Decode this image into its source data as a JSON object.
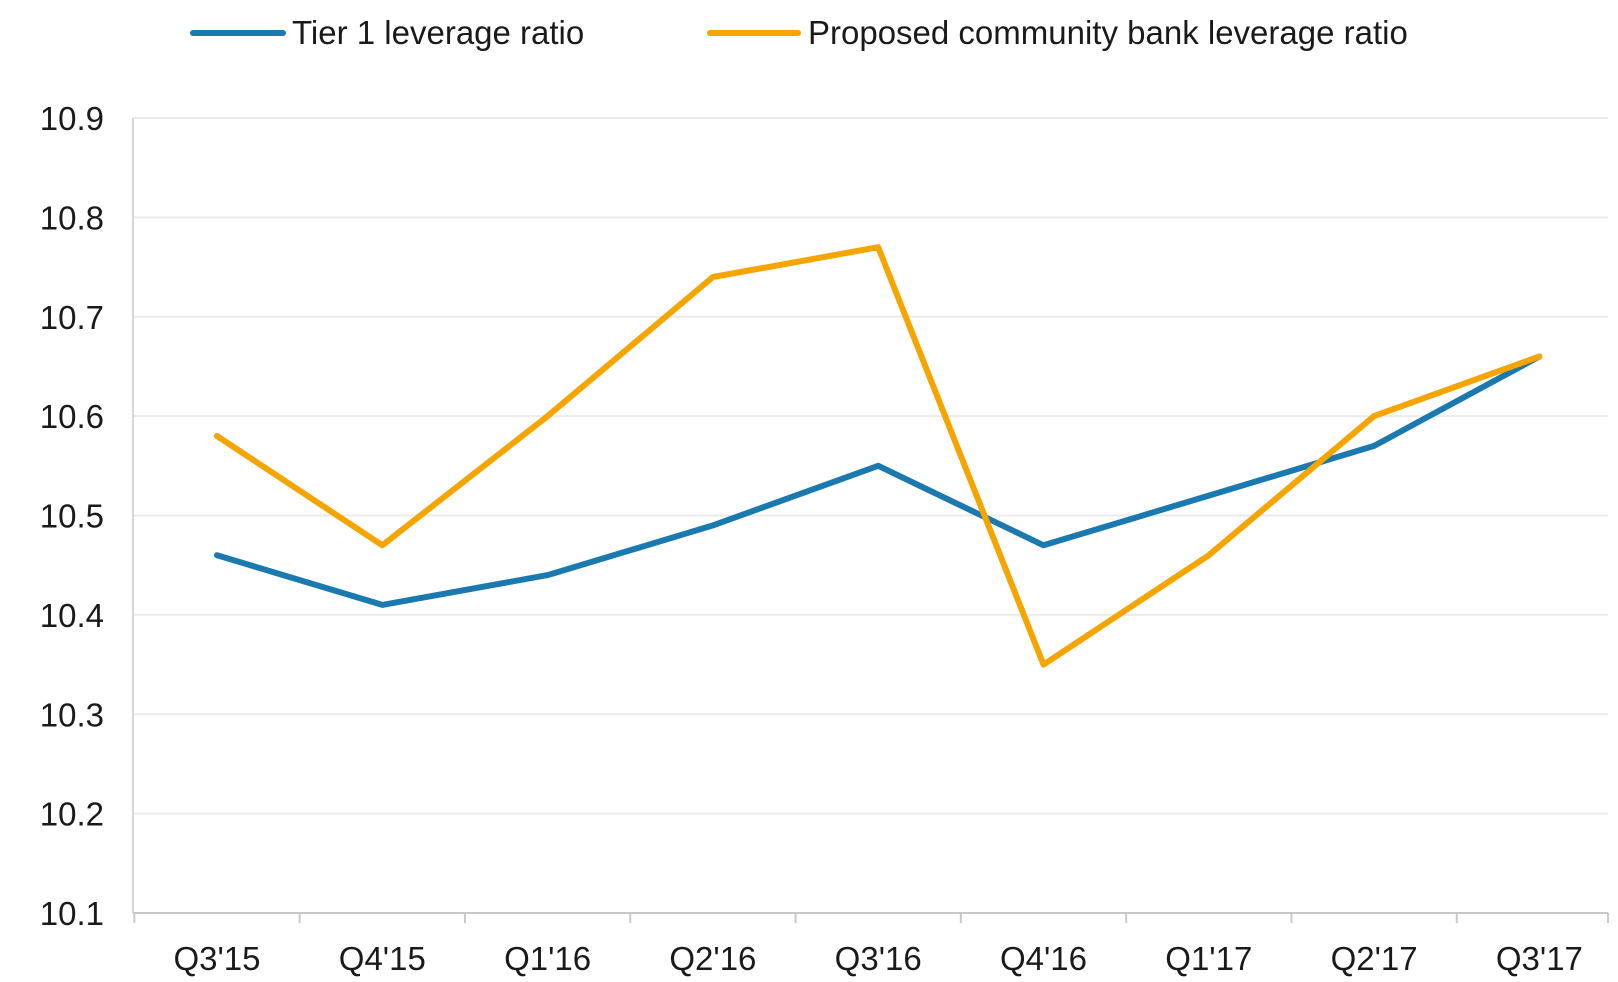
{
  "chart_data": {
    "type": "line",
    "title": "",
    "xlabel": "",
    "ylabel": "",
    "categories": [
      "Q3'15",
      "Q4'15",
      "Q1'16",
      "Q2'16",
      "Q3'16",
      "Q4'16",
      "Q1'17",
      "Q2'17",
      "Q3'17"
    ],
    "series": [
      {
        "name": "Tier 1 leverage ratio",
        "color": "#1a7ab0",
        "values": [
          10.46,
          10.41,
          10.44,
          10.49,
          10.55,
          10.47,
          10.52,
          10.57,
          10.66
        ]
      },
      {
        "name": "Proposed community bank leverage ratio",
        "color": "#f6a500",
        "values": [
          10.58,
          10.47,
          10.6,
          10.74,
          10.77,
          10.35,
          10.46,
          10.6,
          10.66
        ]
      }
    ],
    "ylim": [
      10.1,
      10.9
    ],
    "yticks": [
      "10.9",
      "10.8",
      "10.7",
      "10.6",
      "10.5",
      "10.4",
      "10.3",
      "10.2",
      "10.1"
    ],
    "grid": true,
    "legend_position": "top"
  }
}
